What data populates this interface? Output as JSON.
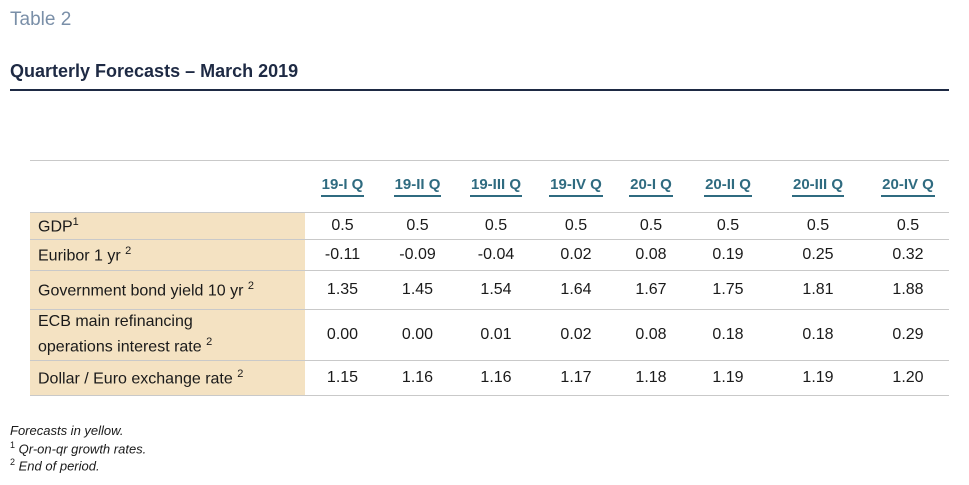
{
  "table_label": "Table 2",
  "title": "Quarterly Forecasts – March 2019",
  "columns": [
    "19-I Q",
    "19-II Q",
    "19-III Q",
    "19-IV Q",
    "20-I Q",
    "20-II Q",
    "20-III Q",
    "20-IV Q"
  ],
  "rows": [
    {
      "label": "GDP",
      "sup": "1",
      "values": [
        "0.5",
        "0.5",
        "0.5",
        "0.5",
        "0.5",
        "0.5",
        "0.5",
        "0.5"
      ]
    },
    {
      "label": "Euribor 1 yr",
      "sup": "2",
      "values": [
        "-0.11",
        "-0.09",
        "-0.04",
        "0.02",
        "0.08",
        "0.19",
        "0.25",
        "0.32"
      ]
    },
    {
      "label": "Government bond yield 10 yr",
      "sup": "2",
      "values": [
        "1.35",
        "1.45",
        "1.54",
        "1.64",
        "1.67",
        "1.75",
        "1.81",
        "1.88"
      ]
    },
    {
      "label_line1": "ECB main refinancing",
      "label_line2": "operations interest rate",
      "sup": "2",
      "values": [
        "0.00",
        "0.00",
        "0.01",
        "0.02",
        "0.08",
        "0.18",
        "0.18",
        "0.29"
      ]
    },
    {
      "label": "Dollar / Euro exchange rate",
      "sup": "2",
      "values": [
        "1.15",
        "1.16",
        "1.16",
        "1.17",
        "1.18",
        "1.19",
        "1.19",
        "1.20"
      ]
    }
  ],
  "footnotes": {
    "forecasts": "Forecasts in yellow.",
    "note1_marker": "1",
    "note1": "Qr-on-qr growth rates.",
    "note2_marker": "2",
    "note2": "End of period."
  },
  "colors": {
    "title": "#1e2a44",
    "header": "#2f6b80",
    "forecast_highlight": "#f4e2c2",
    "table_label": "#7a8fa8"
  }
}
